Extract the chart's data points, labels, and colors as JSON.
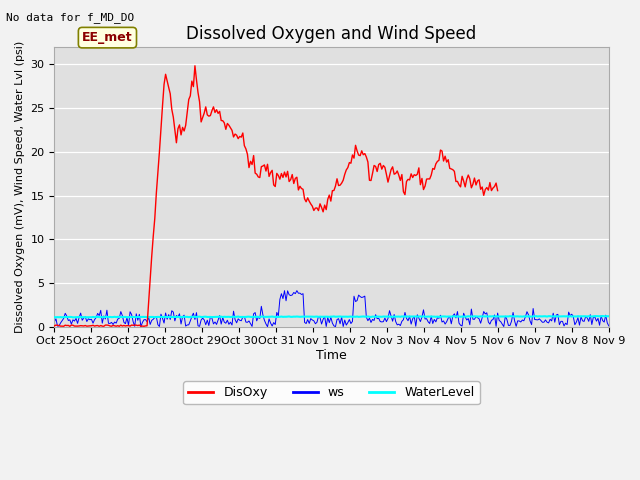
{
  "title": "Dissolved Oxygen and Wind Speed",
  "top_left_text": "No data for f_MD_DO",
  "ylabel": "Dissolved Oxygen (mV), Wind Speed, Water Lvl (psi)",
  "xlabel": "Time",
  "annotation_box": "EE_met",
  "ylim": [
    0,
    32
  ],
  "yticks": [
    0,
    5,
    10,
    15,
    20,
    25,
    30
  ],
  "xtick_labels": [
    "Oct 25",
    "Oct 26",
    "Oct 27",
    "Oct 28",
    "Oct 29",
    "Oct 30",
    "Oct 31",
    "Nov 1",
    "Nov 2",
    "Nov 3",
    "Nov 4",
    "Nov 5",
    "Nov 6",
    "Nov 7",
    "Nov 8",
    "Nov 9"
  ],
  "bg_color": "#e0e0e0",
  "fig_color": "#f2f2f2",
  "disoxy_color": "red",
  "ws_color": "blue",
  "water_color": "cyan",
  "grid_color": "#ffffff",
  "title_fontsize": 12,
  "label_fontsize": 8,
  "tick_fontsize": 8,
  "legend_fontsize": 9
}
